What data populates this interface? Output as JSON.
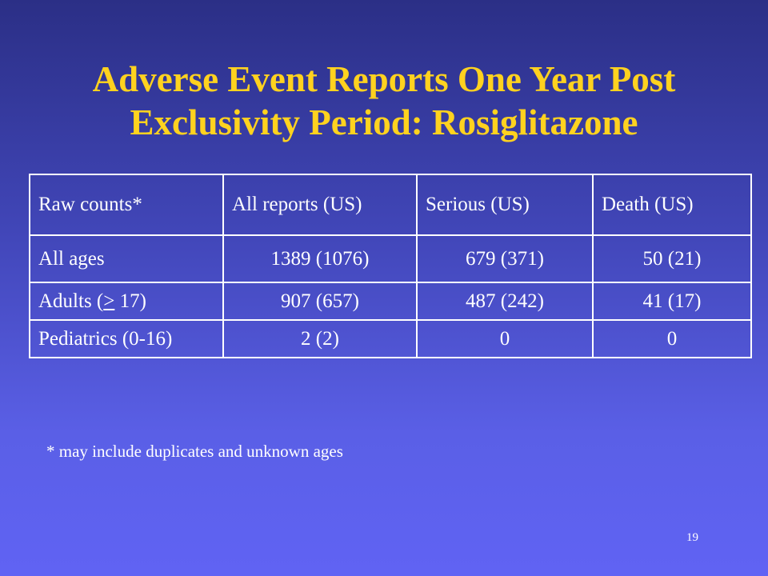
{
  "slide": {
    "title": "Adverse Event Reports One Year Post Exclusivity Period: Rosiglitazone",
    "footnote": "* may include duplicates and unknown ages",
    "page_number": "19"
  },
  "table": {
    "headers": [
      "Raw counts*",
      "All reports (US)",
      "Serious (US)",
      "Death (US)"
    ],
    "rows": [
      {
        "label": "All ages",
        "values": [
          "1389 (1076)",
          "679 (371)",
          "50 (21)"
        ]
      },
      {
        "label_prefix": "Adults (",
        "label_underlined": ">",
        "label_suffix": " 17)",
        "values": [
          "907 (657)",
          "487 (242)",
          "41 (17)"
        ]
      },
      {
        "label": "Pediatrics (0-16)",
        "values": [
          "2 (2)",
          "0",
          "0"
        ]
      }
    ]
  },
  "colors": {
    "title": "#ffd21f",
    "text": "#ffffff",
    "background_top": "#2b2f86",
    "background_bottom": "#6063f4"
  }
}
